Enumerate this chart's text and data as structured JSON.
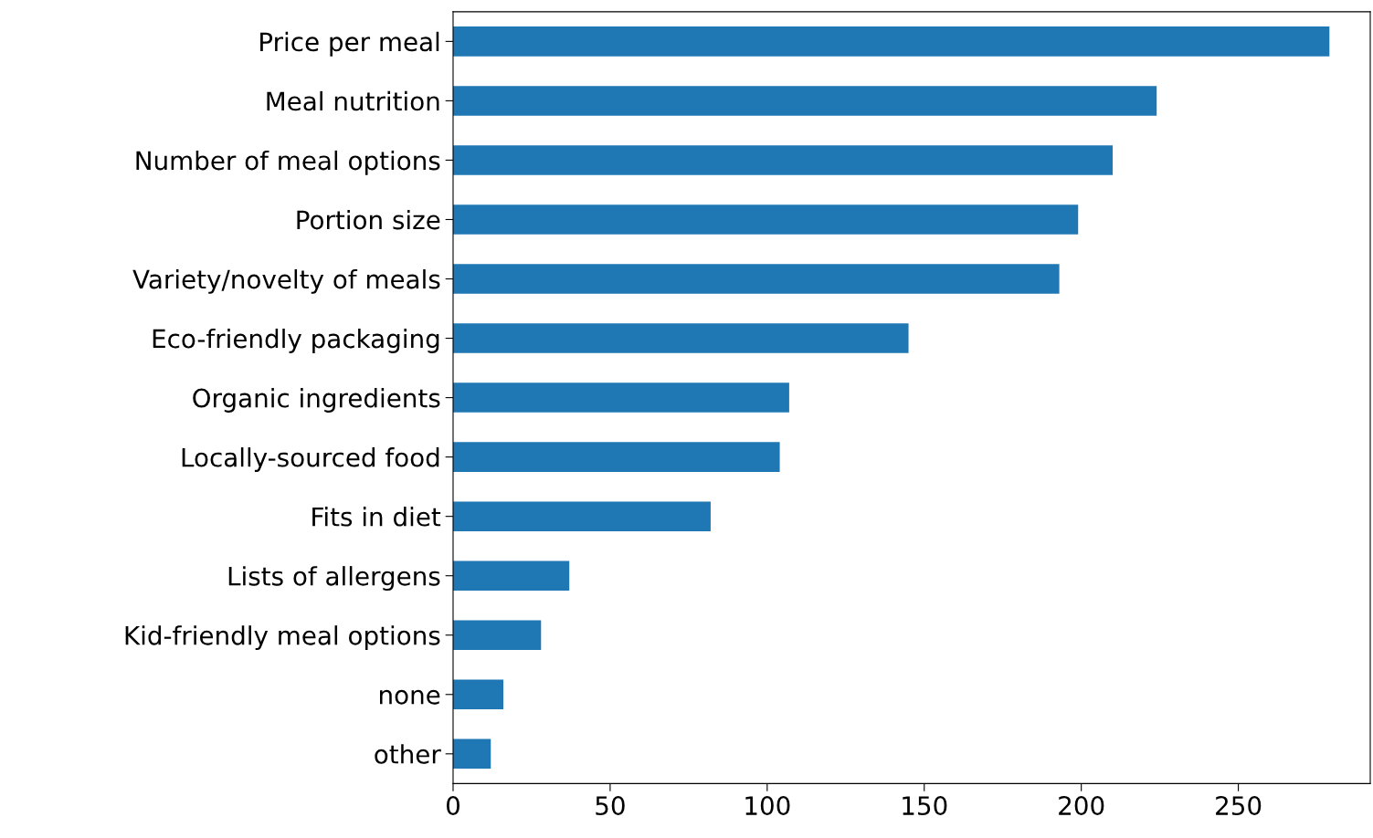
{
  "chart_data": {
    "type": "bar",
    "orientation": "horizontal",
    "color": "#1f77b4",
    "categories": [
      "Price per meal",
      "Meal nutrition",
      "Number of meal options",
      "Portion size",
      "Variety/novelty of meals",
      "Eco-friendly packaging",
      "Organic ingredients",
      "Locally-sourced food",
      "Fits in diet",
      "Lists of allergens",
      "Kid-friendly meal options",
      "none",
      "other"
    ],
    "values": [
      279,
      224,
      210,
      199,
      193,
      145,
      107,
      104,
      82,
      37,
      28,
      16,
      12
    ],
    "xlim": [
      0,
      292
    ],
    "xticks": [
      0,
      50,
      100,
      150,
      200,
      250
    ],
    "grid": false,
    "legend": false
  }
}
